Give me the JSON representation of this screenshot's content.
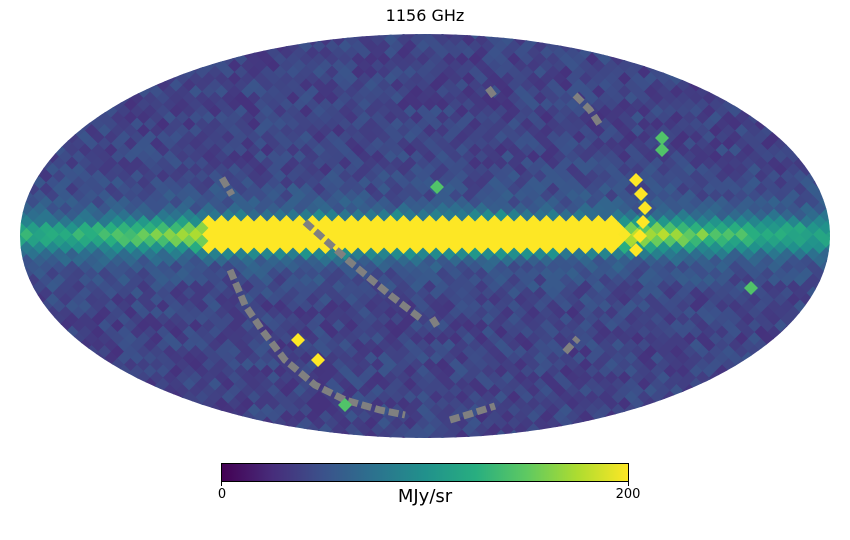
{
  "title": "1156 GHz",
  "colorbar": {
    "min_label": "0",
    "max_label": "200",
    "unit": "MJy/sr",
    "colormap": "viridis",
    "stops": [
      "#440154",
      "#472d7b",
      "#3b528b",
      "#2c728e",
      "#21918c",
      "#28ae80",
      "#5ec962",
      "#addc30",
      "#fde725"
    ]
  },
  "map": {
    "projection": "mollweide",
    "background_level": 0.2,
    "missing_color": "#808080"
  }
}
